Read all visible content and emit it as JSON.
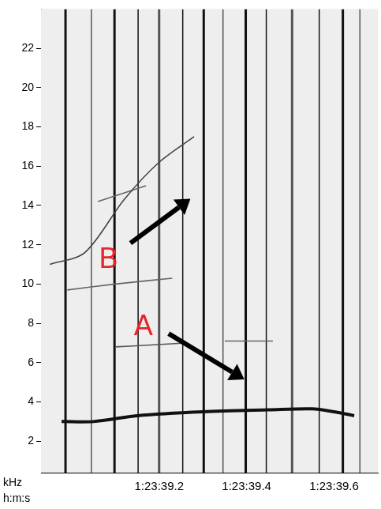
{
  "chart_data": {
    "type": "line",
    "x_label": "h:m:s",
    "y_label": "kHz",
    "xlim": [
      5018.93,
      5019.7
    ],
    "xticks": [
      {
        "value": 5019.2,
        "label": "1:23:39.2"
      },
      {
        "value": 5019.4,
        "label": "1:23:39.4"
      },
      {
        "value": 5019.6,
        "label": "1:23:39.6"
      }
    ],
    "ylim": [
      0.4,
      24
    ],
    "yticks": [
      2,
      4,
      6,
      8,
      10,
      12,
      14,
      16,
      18,
      20,
      22
    ],
    "grid": false,
    "series": [
      {
        "color": "#111111",
        "x": [
          5018.977,
          5019.05,
          5019.15,
          5019.3,
          5019.45,
          5019.55,
          5019.6,
          5019.646
        ],
        "values": [
          3.0,
          3.0,
          3.3,
          3.5,
          3.6,
          3.65,
          3.5,
          3.3
        ]
      },
      {
        "color": "#555555",
        "x": [
          5019.1,
          5019.18,
          5019.26
        ],
        "values": [
          6.8,
          6.9,
          7.0
        ]
      },
      {
        "color": "#666666",
        "x": [
          5019.35,
          5019.46
        ],
        "values": [
          7.1,
          7.1
        ]
      },
      {
        "color": "#666666",
        "x": [
          5018.99,
          5019.1,
          5019.23
        ],
        "values": [
          9.7,
          10.0,
          10.3
        ]
      },
      {
        "color": "#444444",
        "x": [
          5018.95,
          5019.03,
          5019.12,
          5019.2,
          5019.28
        ],
        "values": [
          11.0,
          11.6,
          14.3,
          16.2,
          17.5
        ]
      },
      {
        "color": "#666666",
        "x": [
          5019.06,
          5019.17
        ],
        "values": [
          14.2,
          15.0
        ]
      }
    ],
    "clicks": [
      5018.986,
      5019.045,
      5019.098,
      5019.152,
      5019.2,
      5019.254,
      5019.302,
      5019.346,
      5019.398,
      5019.445,
      5019.504,
      5019.566,
      5019.62,
      5019.659
    ],
    "annotations": [
      {
        "text": "A",
        "x": 5019.164,
        "y": 7.8,
        "color": "#e8242b"
      },
      {
        "text": "B",
        "x": 5019.084,
        "y": 11.2,
        "color": "#e8242b"
      }
    ]
  }
}
